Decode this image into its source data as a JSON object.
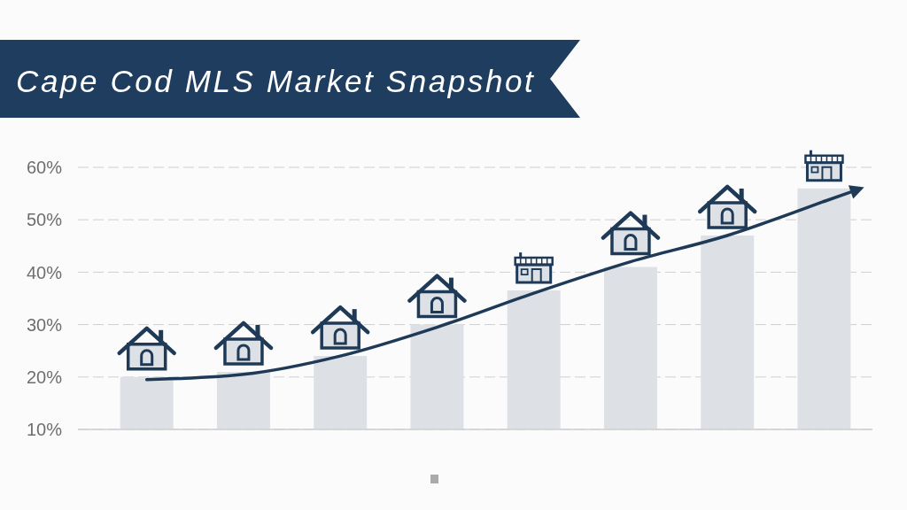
{
  "chart_data": {
    "type": "bar",
    "title": "Cape Cod MLS Market Snapshot",
    "categories": [
      null,
      null,
      null,
      null,
      null,
      null,
      null,
      null
    ],
    "series": [
      {
        "color": "#dde1e6",
        "values": [
          20,
          21,
          24,
          30,
          36.5,
          41,
          47,
          56
        ]
      },
      {
        "type": "line",
        "color": "#1f3a57",
        "marker": "none",
        "values": [
          19.5,
          20.5,
          24,
          29.5,
          36,
          42,
          47,
          53.5
        ]
      }
    ],
    "ylim": [
      10,
      60
    ],
    "yticks": [
      {
        "value": 10,
        "label": "10%"
      },
      {
        "value": 20,
        "label": "20%"
      },
      {
        "value": 30,
        "label": "30%"
      },
      {
        "value": 40,
        "label": "40%"
      },
      {
        "value": 50,
        "label": "50%"
      },
      {
        "value": 60,
        "label": "60%"
      }
    ],
    "grid": "y"
  }
}
